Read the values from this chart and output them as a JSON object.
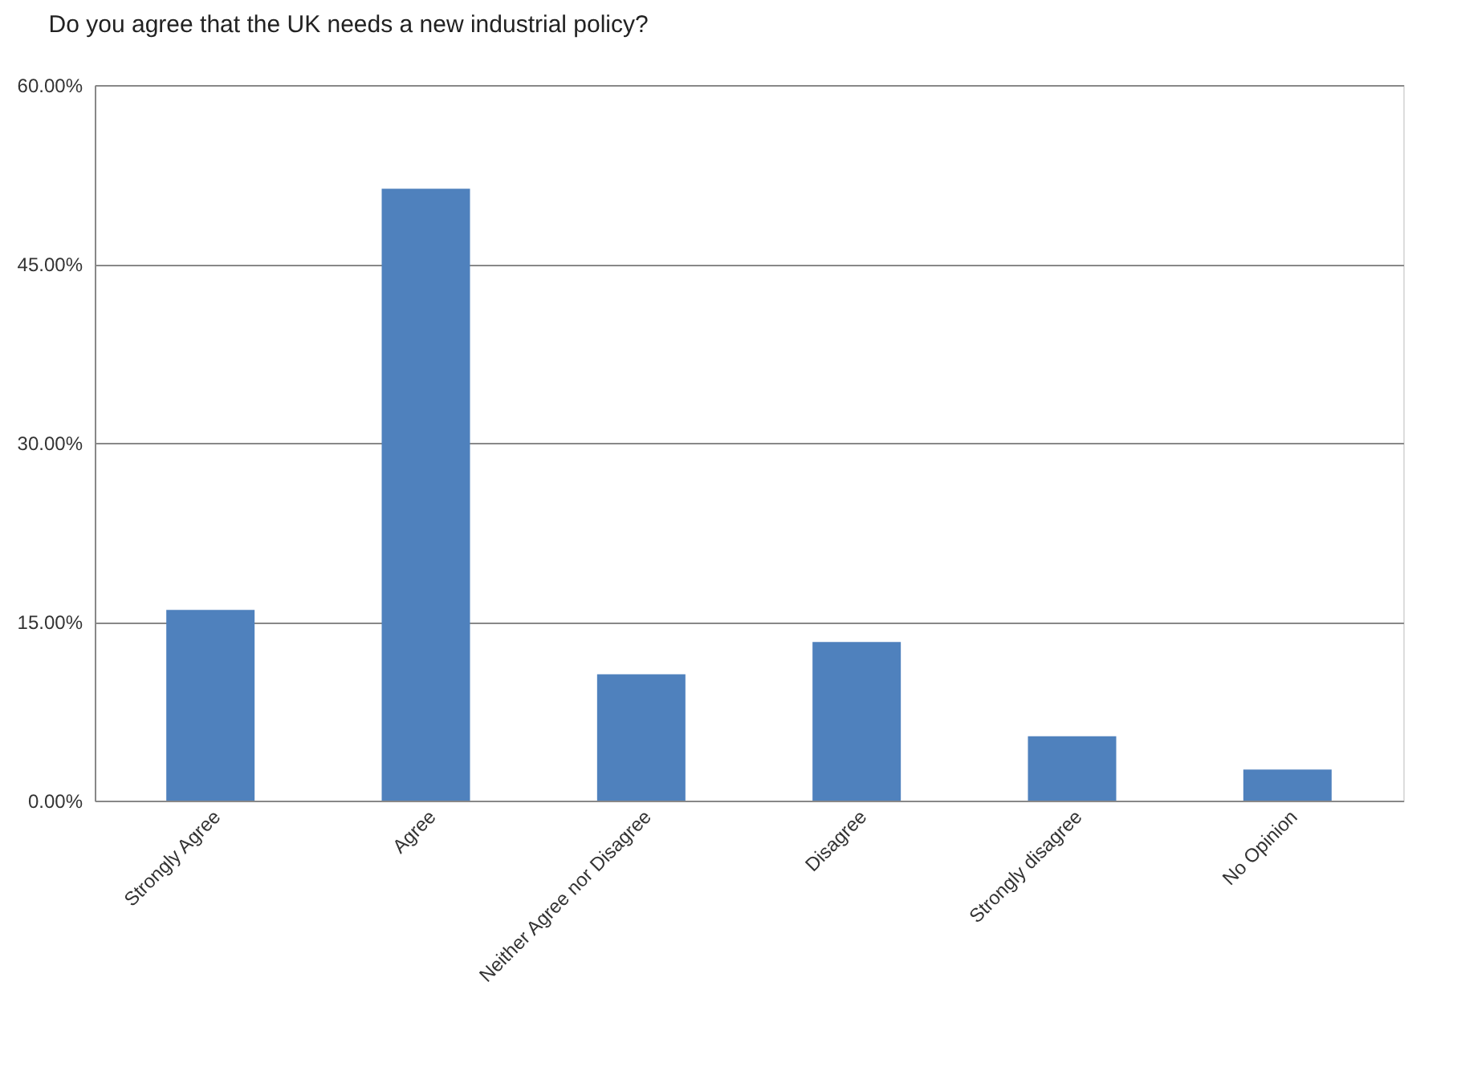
{
  "chart_data": {
    "type": "bar",
    "title": "Do you agree that the UK needs a new industrial policy?",
    "categories": [
      "Strongly Agree",
      "Agree",
      "Neither Agree nor Disagree",
      "Disagree",
      "Strongly disagree",
      "No Opinion"
    ],
    "values": [
      16.0,
      51.3,
      10.6,
      13.3,
      5.4,
      2.6
    ],
    "color": "#4f81bd",
    "ylim": [
      0,
      60
    ],
    "yticks": [
      {
        "value": 0,
        "label": "0.00%"
      },
      {
        "value": 15,
        "label": "15.00%"
      },
      {
        "value": 30,
        "label": "30.00%"
      },
      {
        "value": 45,
        "label": "45.00%"
      },
      {
        "value": 60,
        "label": "60.00%"
      }
    ],
    "grid": "y"
  }
}
